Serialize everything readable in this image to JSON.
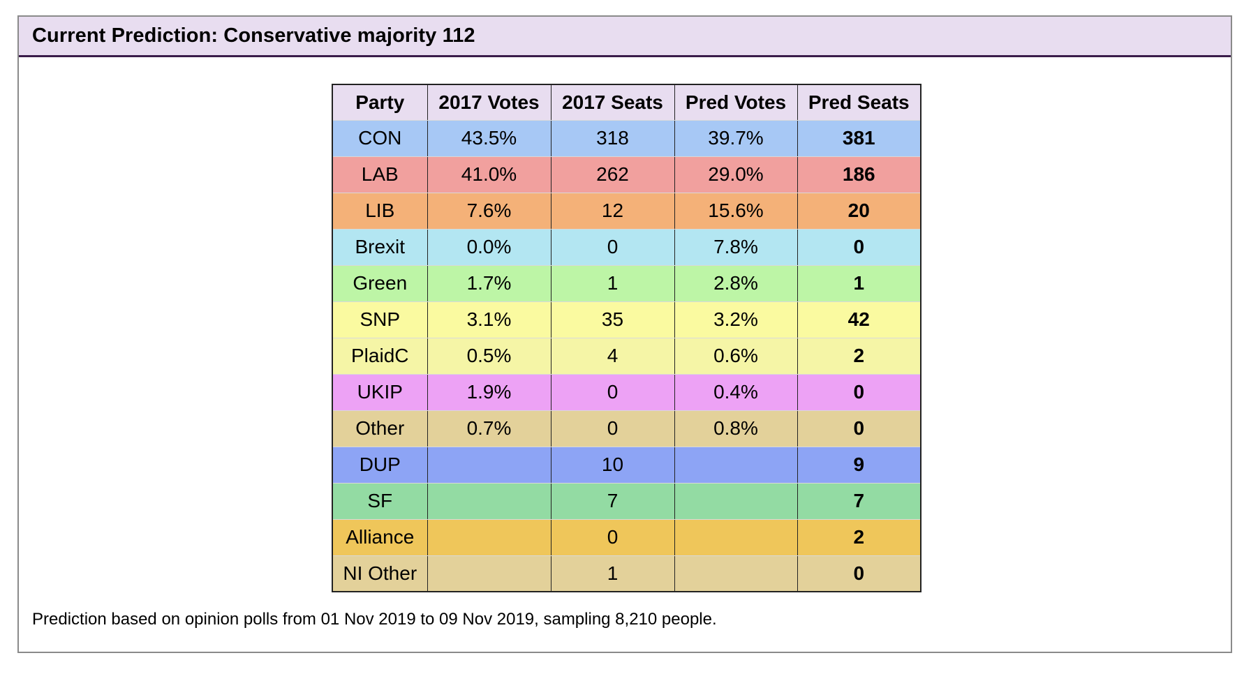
{
  "panel": {
    "title": "Current Prediction: Conservative majority 112"
  },
  "chart_data": {
    "type": "table",
    "title": "Current Prediction: Conservative majority 112",
    "columns": [
      "Party",
      "2017 Votes",
      "2017 Seats",
      "Pred Votes",
      "Pred Seats"
    ],
    "rows": [
      {
        "party": "CON",
        "votes_2017": "43.5%",
        "seats_2017": "318",
        "pred_votes": "39.7%",
        "pred_seats": "381",
        "color": "#a7c8f5"
      },
      {
        "party": "LAB",
        "votes_2017": "41.0%",
        "seats_2017": "262",
        "pred_votes": "29.0%",
        "pred_seats": "186",
        "color": "#f1a09e"
      },
      {
        "party": "LIB",
        "votes_2017": "7.6%",
        "seats_2017": "12",
        "pred_votes": "15.6%",
        "pred_seats": "20",
        "color": "#f4b178"
      },
      {
        "party": "Brexit",
        "votes_2017": "0.0%",
        "seats_2017": "0",
        "pred_votes": "7.8%",
        "pred_seats": "0",
        "color": "#b3e6f2"
      },
      {
        "party": "Green",
        "votes_2017": "1.7%",
        "seats_2017": "1",
        "pred_votes": "2.8%",
        "pred_seats": "1",
        "color": "#bdf5a6"
      },
      {
        "party": "SNP",
        "votes_2017": "3.1%",
        "seats_2017": "35",
        "pred_votes": "3.2%",
        "pred_seats": "42",
        "color": "#fafaa0"
      },
      {
        "party": "PlaidC",
        "votes_2017": "0.5%",
        "seats_2017": "4",
        "pred_votes": "0.6%",
        "pred_seats": "2",
        "color": "#f5f5a6"
      },
      {
        "party": "UKIP",
        "votes_2017": "1.9%",
        "seats_2017": "0",
        "pred_votes": "0.4%",
        "pred_seats": "0",
        "color": "#eda2f5"
      },
      {
        "party": "Other",
        "votes_2017": "0.7%",
        "seats_2017": "0",
        "pred_votes": "0.8%",
        "pred_seats": "0",
        "color": "#e3d19a"
      },
      {
        "party": "DUP",
        "votes_2017": "",
        "seats_2017": "10",
        "pred_votes": "",
        "pred_seats": "9",
        "color": "#8da4f5"
      },
      {
        "party": "SF",
        "votes_2017": "",
        "seats_2017": "7",
        "pred_votes": "",
        "pred_seats": "7",
        "color": "#93dba3"
      },
      {
        "party": "Alliance",
        "votes_2017": "",
        "seats_2017": "0",
        "pred_votes": "",
        "pred_seats": "2",
        "color": "#efc65a"
      },
      {
        "party": "NI Other",
        "votes_2017": "",
        "seats_2017": "1",
        "pred_votes": "",
        "pred_seats": "0",
        "color": "#e3d19a"
      }
    ]
  },
  "footnote": "Prediction based on opinion polls from 01 Nov 2019 to 09 Nov 2019, sampling 8,210 people."
}
